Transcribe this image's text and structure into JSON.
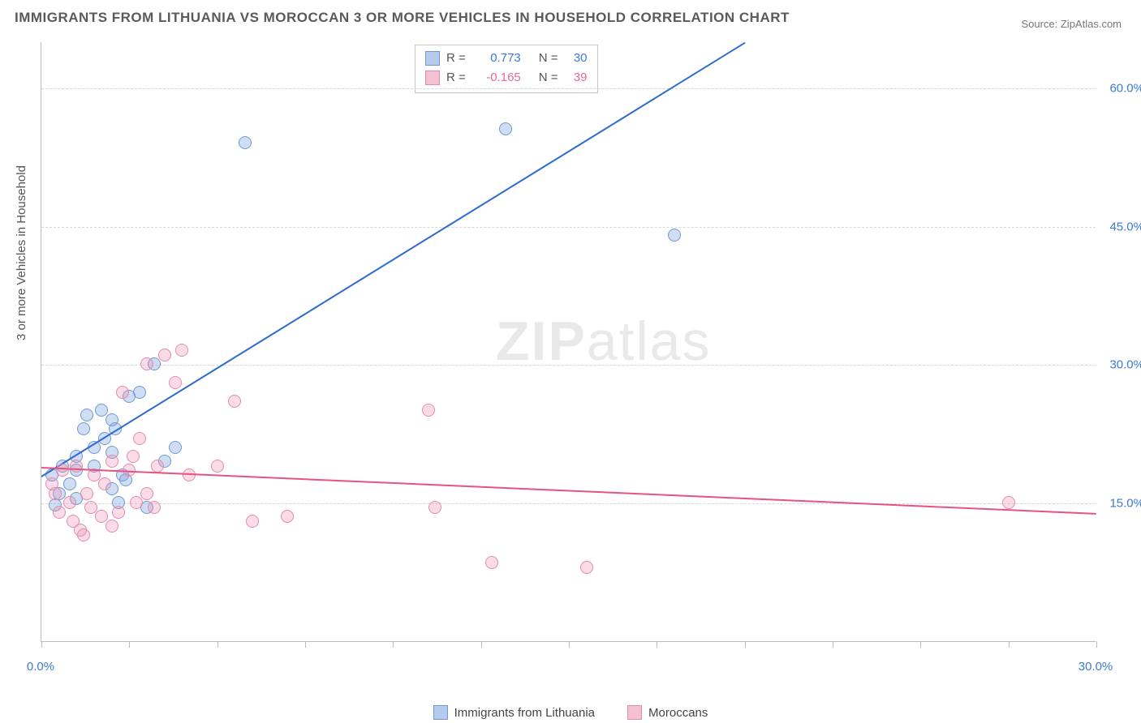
{
  "title": "IMMIGRANTS FROM LITHUANIA VS MOROCCAN 3 OR MORE VEHICLES IN HOUSEHOLD CORRELATION CHART",
  "source": "Source: ZipAtlas.com",
  "y_axis_label": "3 or more Vehicles in Household",
  "watermark": {
    "bold": "ZIP",
    "rest": "atlas"
  },
  "chart": {
    "type": "scatter",
    "background_color": "#ffffff",
    "grid_color": "#d7d7d7",
    "axis_color": "#bcbcbc",
    "xlim": [
      0,
      30
    ],
    "ylim": [
      0,
      65
    ],
    "x_ticks": [
      0,
      2.5,
      5,
      7.5,
      10,
      12.5,
      15,
      17.5,
      20,
      22.5,
      25,
      27.5,
      30
    ],
    "x_tick_labels": {
      "0": "0.0%",
      "30": "30.0%"
    },
    "y_ticks": [
      15,
      30,
      45,
      60
    ],
    "y_tick_labels": [
      "15.0%",
      "30.0%",
      "45.0%",
      "60.0%"
    ],
    "series": [
      {
        "name": "Immigrants from Lithuania",
        "color_fill": "rgba(120,160,220,0.35)",
        "color_stroke": "#6f99d6",
        "trend_color": "#2f6ad0",
        "R": "0.773",
        "N": "30",
        "trend": {
          "x1": 0,
          "y1": 18,
          "x2": 20,
          "y2": 65
        },
        "points": [
          [
            0.3,
            18
          ],
          [
            0.5,
            16
          ],
          [
            0.6,
            19
          ],
          [
            0.8,
            17
          ],
          [
            1.0,
            20
          ],
          [
            1.0,
            18.5
          ],
          [
            1.2,
            23
          ],
          [
            1.3,
            24.5
          ],
          [
            1.5,
            21
          ],
          [
            1.5,
            19
          ],
          [
            1.8,
            22
          ],
          [
            2.0,
            20.5
          ],
          [
            2.0,
            24
          ],
          [
            2.2,
            15
          ],
          [
            2.3,
            18
          ],
          [
            2.4,
            17.5
          ],
          [
            2.5,
            26.5
          ],
          [
            2.8,
            27
          ],
          [
            3.0,
            14.5
          ],
          [
            3.2,
            30
          ],
          [
            3.5,
            19.5
          ],
          [
            3.8,
            21
          ],
          [
            1.0,
            15.5
          ],
          [
            0.4,
            14.8
          ],
          [
            5.8,
            54
          ],
          [
            13.2,
            55.5
          ],
          [
            18.0,
            44
          ],
          [
            2.0,
            16.5
          ],
          [
            1.7,
            25
          ],
          [
            2.1,
            23
          ]
        ]
      },
      {
        "name": "Moroccans",
        "color_fill": "rgba(235,140,175,0.30)",
        "color_stroke": "#e58aad",
        "trend_color": "#e7537f",
        "R": "-0.165",
        "N": "39",
        "trend": {
          "x1": 0,
          "y1": 19,
          "x2": 30,
          "y2": 14
        },
        "points": [
          [
            0.3,
            17
          ],
          [
            0.5,
            14
          ],
          [
            0.6,
            18.5
          ],
          [
            0.8,
            15
          ],
          [
            0.9,
            13
          ],
          [
            1.0,
            19
          ],
          [
            1.1,
            12
          ],
          [
            1.3,
            16
          ],
          [
            1.4,
            14.5
          ],
          [
            1.5,
            18
          ],
          [
            1.7,
            13.5
          ],
          [
            1.8,
            17
          ],
          [
            2.0,
            19.5
          ],
          [
            2.0,
            12.5
          ],
          [
            2.2,
            14
          ],
          [
            2.3,
            27
          ],
          [
            2.5,
            18.5
          ],
          [
            2.7,
            15
          ],
          [
            2.8,
            22
          ],
          [
            3.0,
            30
          ],
          [
            3.2,
            14.5
          ],
          [
            3.3,
            19
          ],
          [
            3.5,
            31
          ],
          [
            3.8,
            28
          ],
          [
            4.0,
            31.5
          ],
          [
            4.2,
            18
          ],
          [
            5.0,
            19
          ],
          [
            5.5,
            26
          ],
          [
            6.0,
            13
          ],
          [
            7.0,
            13.5
          ],
          [
            11.0,
            25
          ],
          [
            11.2,
            14.5
          ],
          [
            12.8,
            8.5
          ],
          [
            15.5,
            8
          ],
          [
            3.0,
            16
          ],
          [
            1.2,
            11.5
          ],
          [
            0.4,
            16
          ],
          [
            27.5,
            15
          ],
          [
            2.6,
            20
          ]
        ]
      }
    ]
  },
  "bottom_legend": [
    {
      "label": "Immigrants from Lithuania",
      "fill": "rgba(120,160,220,0.55)",
      "stroke": "#6f99d6"
    },
    {
      "label": "Moroccans",
      "fill": "rgba(235,140,175,0.55)",
      "stroke": "#e58aad"
    }
  ],
  "stats_legend": [
    {
      "fill": "rgba(120,160,220,0.55)",
      "stroke": "#6f99d6",
      "r_label": "R =",
      "r_val": "0.773",
      "n_label": "N =",
      "n_val": "30",
      "val_class": "val-blue"
    },
    {
      "fill": "rgba(235,140,175,0.55)",
      "stroke": "#e58aad",
      "r_label": "R =",
      "r_val": "-0.165",
      "n_label": "N =",
      "n_val": "39",
      "val_class": "val-pink"
    }
  ]
}
